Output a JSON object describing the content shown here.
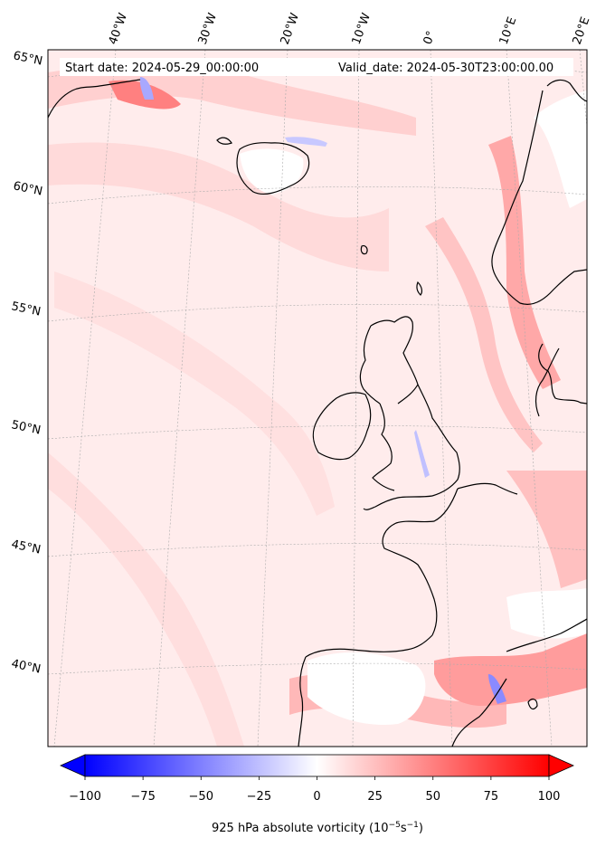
{
  "header": {
    "start_date": "Start date: 2024-05-29_00:00:00",
    "valid_date": "Valid_date: 2024-05-30T23:00:00.00"
  },
  "longitude_labels": [
    "40°W",
    "30°W",
    "20°W",
    "10°W",
    "0°",
    "10°E",
    "20°E"
  ],
  "latitude_labels": [
    "65°N",
    "60°N",
    "55°N",
    "50°N",
    "45°N",
    "40°N"
  ],
  "colorbar": {
    "min": -100,
    "max": 100,
    "ticks": [
      "−100",
      "−75",
      "−50",
      "−25",
      "0",
      "25",
      "50",
      "75",
      "100"
    ],
    "label_main": "925 hPa absolute vorticity (10",
    "label_exp1": "−5",
    "label_mid": "s",
    "label_exp2": "−1",
    "label_end": ")",
    "colormap": "bwr",
    "color_low": "#0000ff",
    "color_mid": "#ffffff",
    "color_high": "#ff0000",
    "extend": "both"
  },
  "map": {
    "background_color": "#ffecec",
    "coastline_color": "#000000",
    "gridlines": "dotted grey"
  }
}
